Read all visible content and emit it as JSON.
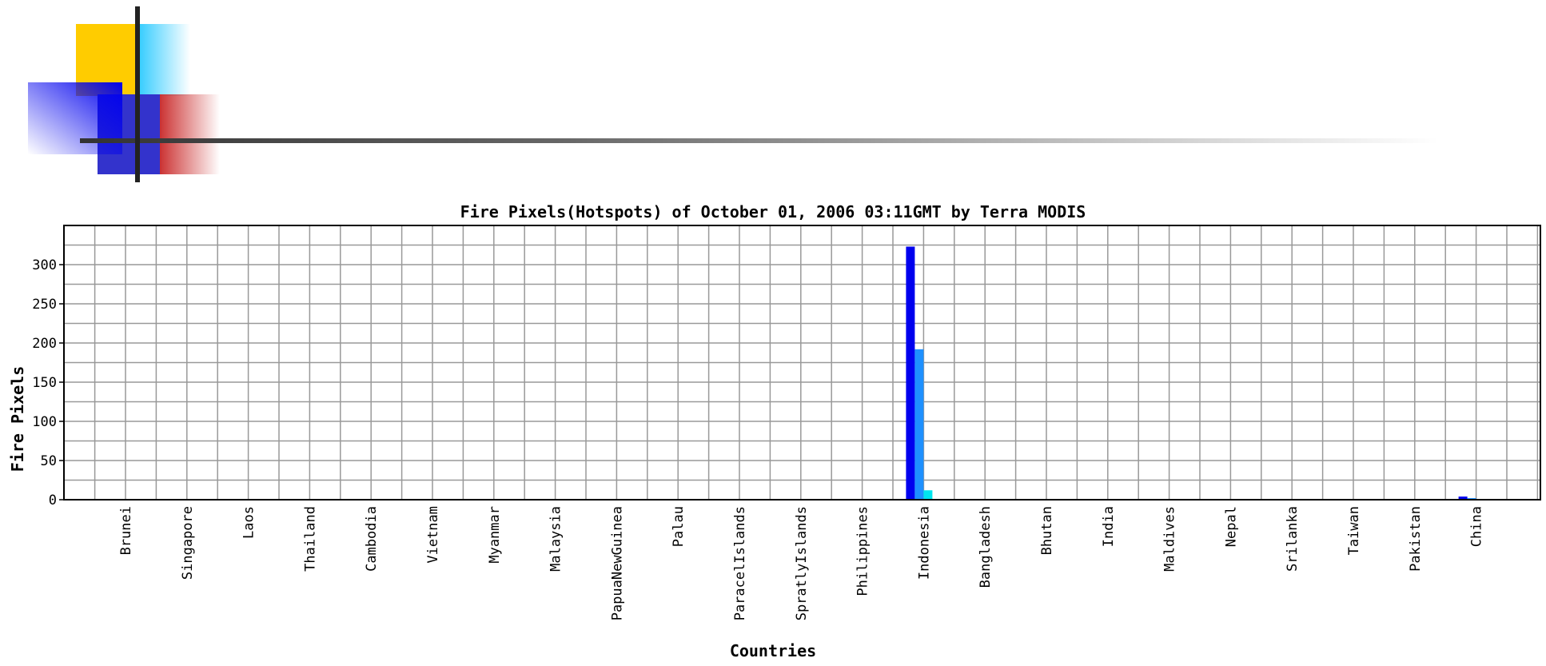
{
  "chart_data": {
    "type": "bar",
    "title": "Fire Pixels(Hotspots) of October 01, 2006 03:11GMT by Terra MODIS",
    "xlabel": "Countries",
    "ylabel": "Fire Pixels",
    "ylim": [
      0,
      350
    ],
    "yticks": [
      0,
      50,
      100,
      150,
      200,
      250,
      300
    ],
    "grid": true,
    "legend": "none",
    "categories": [
      "Brunei",
      "Singapore",
      "Laos",
      "Thailand",
      "Cambodia",
      "Vietnam",
      "Myanmar",
      "Malaysia",
      "PapuaNewGuinea",
      "Palau",
      "ParacelIslands",
      "SpratlyIslands",
      "Philippines",
      "Indonesia",
      "Bangladesh",
      "Bhutan",
      "India",
      "Maldives",
      "Nepal",
      "Srilanka",
      "Taiwan",
      "Pakistan",
      "China"
    ],
    "series": [
      {
        "color": "#0000ee",
        "values": [
          0,
          0,
          0,
          0,
          0,
          0,
          0,
          0,
          0,
          0,
          0,
          0,
          0,
          323,
          0,
          0,
          0,
          0,
          0,
          0,
          0,
          0,
          4
        ]
      },
      {
        "color": "#1e90ff",
        "values": [
          0,
          0,
          0,
          0,
          0,
          0,
          0,
          0,
          0,
          0,
          0,
          0,
          0,
          192,
          0,
          0,
          0,
          0,
          0,
          0,
          0,
          0,
          2
        ]
      },
      {
        "color": "#00e5ee",
        "values": [
          0,
          0,
          0,
          0,
          0,
          0,
          0,
          0,
          0,
          0,
          0,
          0,
          0,
          12,
          0,
          0,
          0,
          0,
          0,
          0,
          0,
          0,
          0
        ]
      }
    ]
  },
  "colors": {
    "deco_yellow": "#ffcc00",
    "deco_cyan": "#33ccff",
    "deco_blue": "#3333cc",
    "deco_red": "#cc3333",
    "deco_line": "#333333",
    "grid": "#999999"
  }
}
